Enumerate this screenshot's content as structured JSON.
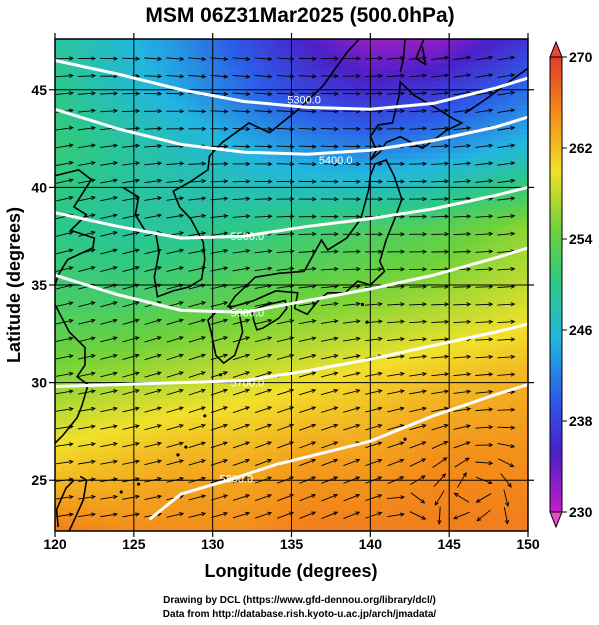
{
  "title": "MSM 06Z31Mar2025 (500.0hPa)",
  "xlabel": "Longitude (degrees)",
  "ylabel": "Latitude  (degrees)",
  "credits": [
    "Drawing by DCL (https://www.gfd-dennou.org/library/dcl/)",
    "Data from http://database.rish.kyoto-u.ac.jp/arch/jmadata/"
  ],
  "colors": {
    "contour": "#ffffff",
    "vectors": "#000000",
    "coastline": "#000000",
    "cb_over": "#e8483a",
    "cb_under": "#e84ac8"
  },
  "chart_data": {
    "type": "heatmap",
    "xlim": [
      120,
      150
    ],
    "ylim": [
      22.4,
      47.6
    ],
    "xticks": [
      "120",
      "125",
      "130",
      "135",
      "140",
      "145",
      "150"
    ],
    "xtick_values": [
      120,
      125,
      130,
      135,
      140,
      145,
      150
    ],
    "yticks": [
      "25",
      "30",
      "35",
      "40",
      "45"
    ],
    "ytick_values": [
      25,
      30,
      35,
      40,
      45
    ],
    "grid": true,
    "colorbar": {
      "min": 230,
      "max": 270,
      "ticks": [
        "270",
        "262",
        "254",
        "246",
        "238",
        "230"
      ],
      "tick_values": [
        270,
        262,
        254,
        246,
        238,
        230
      ],
      "colormap": "rainbow",
      "extend": "both"
    },
    "contours": [
      {
        "label": "5300.0",
        "value": 5300,
        "label_at": [
          135.8,
          44.5
        ],
        "points": [
          [
            120,
            46.5
          ],
          [
            124,
            45.8
          ],
          [
            128,
            45.0
          ],
          [
            132,
            44.4
          ],
          [
            136,
            44.1
          ],
          [
            140,
            44.0
          ],
          [
            144,
            44.3
          ],
          [
            148,
            45.1
          ],
          [
            150,
            45.6
          ]
        ]
      },
      {
        "label": "5400.0",
        "value": 5400,
        "label_at": [
          137.8,
          41.4
        ],
        "points": [
          [
            120,
            44.0
          ],
          [
            124,
            43.0
          ],
          [
            128,
            42.2
          ],
          [
            132,
            41.8
          ],
          [
            136,
            41.7
          ],
          [
            140,
            41.9
          ],
          [
            144,
            42.4
          ],
          [
            148,
            43.1
          ],
          [
            150,
            43.6
          ]
        ]
      },
      {
        "label": "5500.0",
        "value": 5500,
        "label_at": [
          132.2,
          37.5
        ],
        "points": [
          [
            120,
            38.7
          ],
          [
            124,
            38.0
          ],
          [
            128,
            37.4
          ],
          [
            132,
            37.5
          ],
          [
            136,
            38.0
          ],
          [
            140,
            38.4
          ],
          [
            144,
            38.9
          ],
          [
            148,
            39.6
          ],
          [
            150,
            40.0
          ]
        ]
      },
      {
        "label": "5600.0",
        "value": 5600,
        "label_at": [
          132.2,
          33.6
        ],
        "points": [
          [
            120,
            35.5
          ],
          [
            124,
            34.5
          ],
          [
            128,
            33.7
          ],
          [
            132,
            33.6
          ],
          [
            136,
            34.2
          ],
          [
            140,
            34.8
          ],
          [
            144,
            35.5
          ],
          [
            148,
            36.4
          ],
          [
            150,
            36.9
          ]
        ]
      },
      {
        "label": "5700.0",
        "value": 5700,
        "label_at": [
          132.2,
          30.0
        ],
        "points": [
          [
            120,
            29.8
          ],
          [
            124,
            29.9
          ],
          [
            128,
            30.0
          ],
          [
            132,
            30.1
          ],
          [
            136,
            30.6
          ],
          [
            140,
            31.2
          ],
          [
            144,
            31.9
          ],
          [
            148,
            32.6
          ],
          [
            150,
            33.0
          ]
        ]
      },
      {
        "label": "5800.0",
        "value": 5800,
        "label_at": [
          131.5,
          25.1
        ],
        "points": [
          [
            126,
            23.0
          ],
          [
            128,
            24.3
          ],
          [
            131,
            25.0
          ],
          [
            134,
            25.8
          ],
          [
            137,
            26.4
          ],
          [
            140,
            27.0
          ],
          [
            144,
            28.3
          ],
          [
            148,
            29.4
          ],
          [
            150,
            29.9
          ]
        ]
      }
    ],
    "field_temperature": [
      {
        "lat": 47.6,
        "values": [
          249,
          246,
          243,
          239,
          235,
          232,
          232,
          237
        ]
      },
      {
        "lat": 45,
        "values": [
          250,
          247,
          244,
          241,
          238,
          236,
          237,
          241
        ]
      },
      {
        "lat": 42,
        "values": [
          251,
          249,
          247,
          245,
          243,
          242,
          243,
          246
        ]
      },
      {
        "lat": 38,
        "values": [
          250,
          249,
          249,
          250,
          251,
          252,
          253,
          256
        ]
      },
      {
        "lat": 34,
        "values": [
          252,
          252,
          253,
          254,
          255,
          256,
          257,
          259
        ]
      },
      {
        "lat": 30,
        "values": [
          256,
          257,
          258,
          259,
          260,
          261,
          262,
          263
        ]
      },
      {
        "lat": 26,
        "values": [
          261,
          262,
          263,
          263,
          264,
          264,
          265,
          265
        ]
      },
      {
        "lat": 22.4,
        "values": [
          266,
          265,
          265,
          265,
          266,
          266,
          266,
          266
        ]
      }
    ],
    "field_lons": [
      120,
      124,
      128,
      132,
      136,
      140,
      144,
      150
    ]
  }
}
